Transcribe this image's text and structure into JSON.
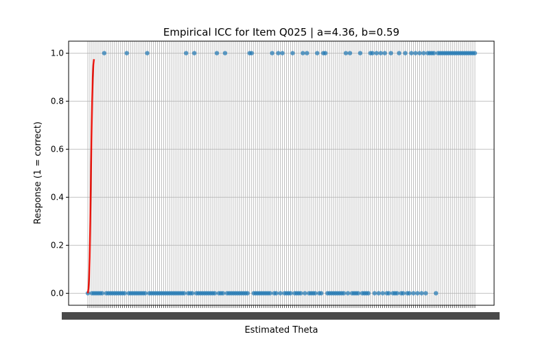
{
  "chart_data": {
    "type": "scatter",
    "title": "Empirical ICC for Item Q025 | a=4.36, b=0.59",
    "xlabel": "Estimated Theta",
    "ylabel": "Response (1 = correct)",
    "ylim": [
      -0.05,
      1.05
    ],
    "y_ticks": [
      0.0,
      0.2,
      0.4,
      0.6,
      0.8,
      1.0
    ],
    "y_tick_labels": [
      "0.0",
      "0.2",
      "0.4",
      "0.6",
      "0.8",
      "1.0"
    ],
    "grid": true,
    "x_axis_note": "x tick labels are dense and overlapping in the original (categorical theta values), rendered as unreadable clutter",
    "item": "Q025",
    "irt_params": {
      "a": 4.36,
      "b": 0.59
    },
    "x_category_count": 190,
    "colors": {
      "points": "#1f77b4",
      "curve": "#e8140c",
      "grid": "#b0b0b0"
    },
    "series": [
      {
        "kind": "points",
        "responses_1_at_index": [
          8,
          19,
          29,
          48,
          52,
          63,
          67,
          79,
          80,
          90,
          93,
          95,
          100,
          105,
          107,
          112,
          115,
          116,
          126,
          128,
          133,
          138,
          139,
          141,
          143,
          145,
          148,
          152,
          155,
          158,
          160,
          162,
          164,
          166,
          167,
          168,
          169,
          171,
          172,
          173,
          174,
          175,
          176,
          177,
          178,
          179,
          180,
          181,
          182,
          183,
          184,
          185,
          186,
          187,
          188,
          189
        ],
        "responses_0_at_index": [
          0,
          2,
          3,
          4,
          5,
          6,
          7,
          9,
          10,
          11,
          12,
          13,
          14,
          15,
          16,
          17,
          18,
          20,
          21,
          22,
          23,
          24,
          25,
          26,
          27,
          28,
          30,
          31,
          32,
          33,
          34,
          35,
          36,
          37,
          38,
          39,
          40,
          41,
          42,
          43,
          44,
          45,
          46,
          47,
          49,
          50,
          51,
          53,
          54,
          55,
          56,
          57,
          58,
          59,
          60,
          61,
          62,
          64,
          65,
          66,
          68,
          69,
          70,
          71,
          72,
          73,
          74,
          75,
          76,
          77,
          78,
          81,
          82,
          83,
          84,
          85,
          86,
          87,
          88,
          89,
          91,
          92,
          94,
          96,
          97,
          98,
          99,
          101,
          102,
          103,
          104,
          106,
          108,
          109,
          110,
          111,
          113,
          114,
          117,
          118,
          119,
          120,
          121,
          122,
          123,
          124,
          125,
          127,
          129,
          130,
          131,
          132,
          134,
          135,
          136,
          137,
          140,
          142,
          144,
          146,
          147,
          149,
          150,
          151,
          153,
          154,
          156,
          157,
          159,
          161,
          163,
          165,
          170
        ]
      },
      {
        "kind": "curve",
        "x_index": [
          0,
          0.3,
          0.6,
          0.9,
          1.2,
          1.5,
          1.8,
          2.1,
          2.4,
          2.7,
          3.0
        ],
        "y": [
          0.0,
          0.02,
          0.06,
          0.15,
          0.3,
          0.48,
          0.65,
          0.8,
          0.9,
          0.95,
          0.975
        ]
      }
    ]
  }
}
